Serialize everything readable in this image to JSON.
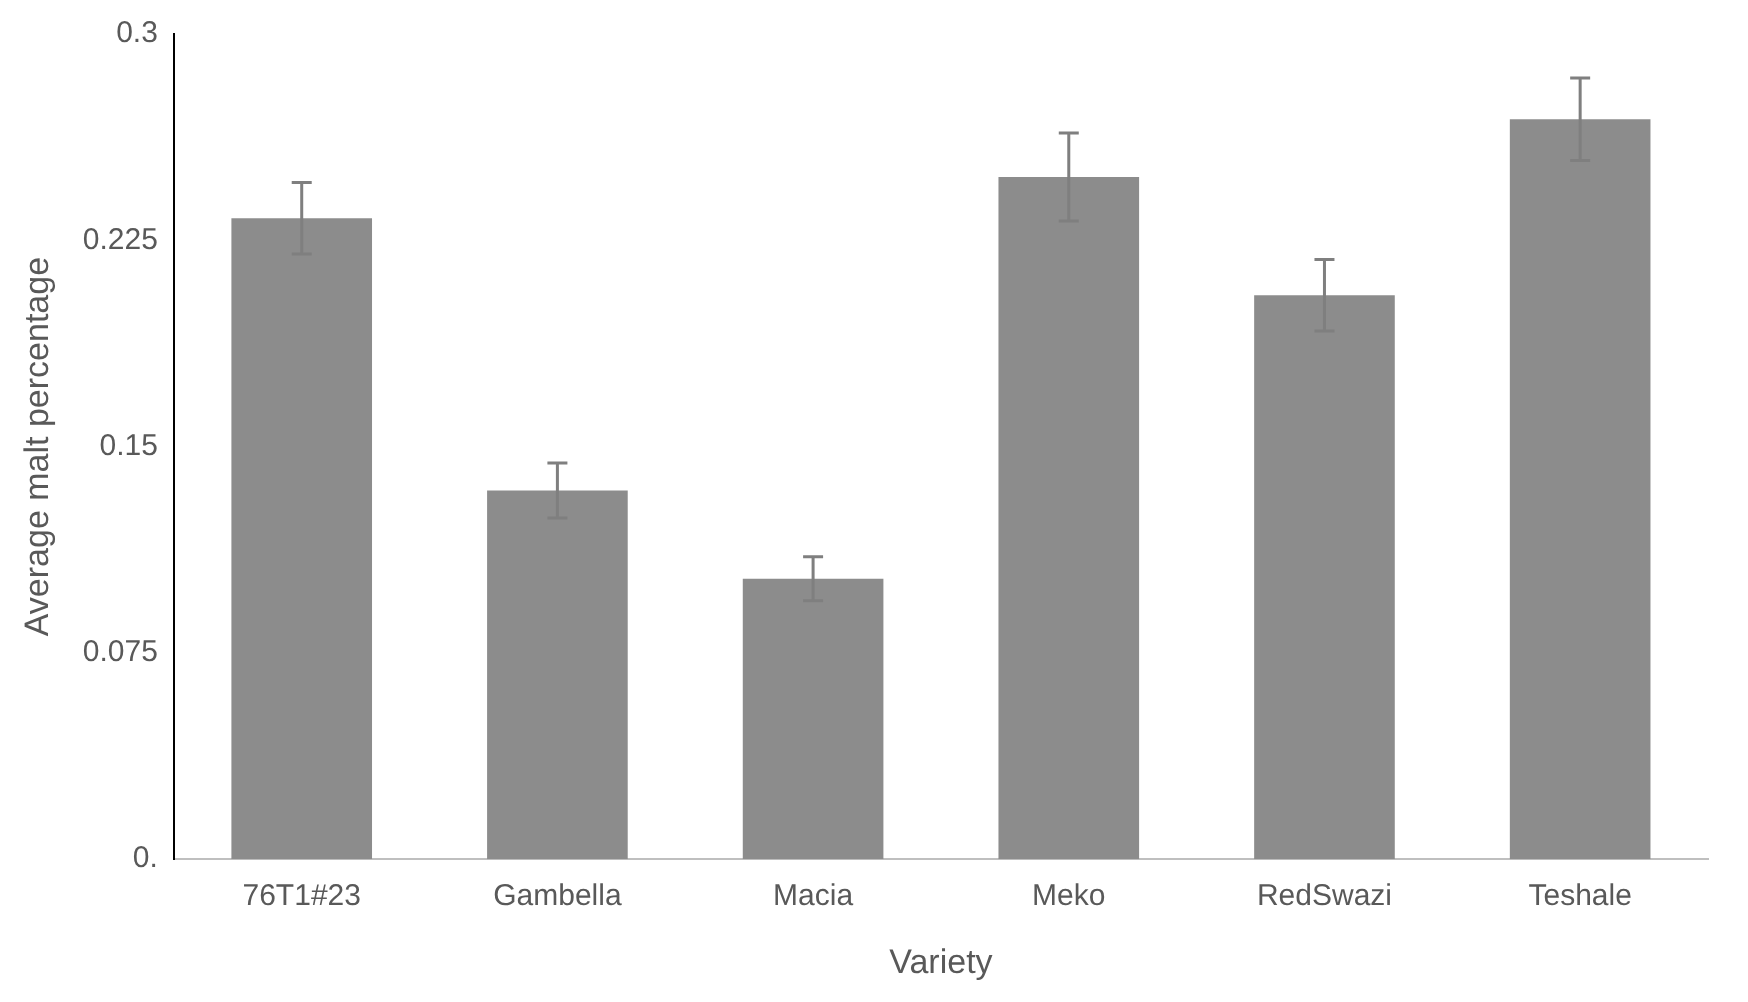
{
  "chart_data": {
    "type": "bar",
    "xlabel": "Variety",
    "ylabel": "Average malt percentage",
    "categories": [
      "76T1#23",
      "Gambella",
      "Macia",
      "Meko",
      "RedSwazi",
      "Teshale"
    ],
    "values": [
      0.233,
      0.134,
      0.102,
      0.248,
      0.205,
      0.269
    ],
    "errors": [
      0.013,
      0.01,
      0.008,
      0.016,
      0.013,
      0.015
    ],
    "color": "#8c8c8c",
    "ylim": [
      0,
      0.3
    ],
    "yticks": [
      {
        "value": 0,
        "label": "0."
      },
      0.075,
      0.15,
      0.225,
      0.3
    ],
    "grid": false,
    "legend": false
  }
}
